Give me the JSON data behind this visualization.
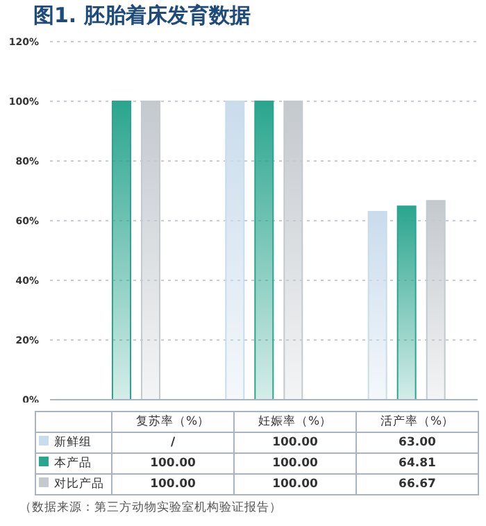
{
  "chart_data": {
    "type": "bar",
    "title": "图1. 胚胎着床发育数据",
    "categories": [
      "复苏率（%）",
      "妊娠率（%）",
      "活产率（%）"
    ],
    "series": [
      {
        "name": "新鲜组",
        "color": "#c9dcec",
        "values": [
          null,
          100,
          63.0
        ],
        "value_labels": [
          "/",
          "100.00",
          "63.00"
        ]
      },
      {
        "name": "本产品",
        "color": "#2aa58e",
        "values": [
          100,
          100,
          64.81
        ],
        "value_labels": [
          "100.00",
          "100.00",
          "64.81"
        ]
      },
      {
        "name": "对比产品",
        "color": "#c4c9ce",
        "values": [
          100,
          100,
          66.67
        ],
        "value_labels": [
          "100.00",
          "100.00",
          "66.67"
        ]
      }
    ],
    "ylim": [
      0,
      120
    ],
    "yticks": [
      {
        "value": 0,
        "label": "0%"
      },
      {
        "value": 20,
        "label": "20%"
      },
      {
        "value": 40,
        "label": "40%"
      },
      {
        "value": 60,
        "label": "60%"
      },
      {
        "value": 80,
        "label": "80%"
      },
      {
        "value": 100,
        "label": "100%"
      },
      {
        "value": 120,
        "label": "120%"
      }
    ],
    "grid": "y",
    "legend": "bottom",
    "tick_labels": "y",
    "annotations": [
      "（数据来源：第三方动物实验室机构验证报告）"
    ]
  }
}
